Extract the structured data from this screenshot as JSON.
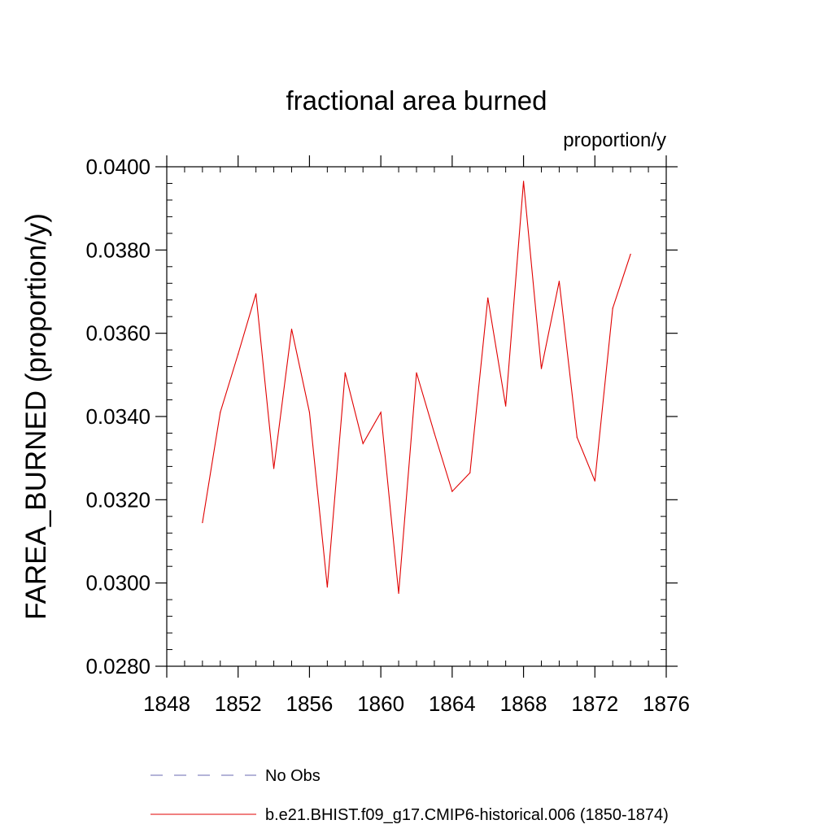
{
  "chart_data": {
    "type": "line",
    "title": "fractional area burned",
    "units_label": "proportion/y",
    "xlabel": "",
    "ylabel": "FAREA_BURNED  (proportion/y)",
    "xlim": [
      1848,
      1876
    ],
    "ylim": [
      0.028,
      0.04
    ],
    "x_ticks": [
      1848,
      1852,
      1856,
      1860,
      1864,
      1868,
      1872,
      1876
    ],
    "x_tick_labels": [
      "1848",
      "1852",
      "1856",
      "1860",
      "1864",
      "1868",
      "1872",
      "1876"
    ],
    "y_ticks": [
      0.028,
      0.03,
      0.032,
      0.034,
      0.036,
      0.038,
      0.04
    ],
    "y_tick_labels": [
      "0.0280",
      "0.0300",
      "0.0320",
      "0.0340",
      "0.0360",
      "0.0380",
      "0.0400"
    ],
    "grid": false,
    "legend_position": "bottom",
    "series": [
      {
        "name": "No Obs",
        "color": "#6a6ab0",
        "dash": "dashed",
        "x": [],
        "y": []
      },
      {
        "name": "b.e21.BHIST.f09_g17.CMIP6-historical.006 (1850-1874)",
        "color": "#e00000",
        "dash": "solid",
        "x": [
          1850,
          1851,
          1852,
          1853,
          1854,
          1855,
          1856,
          1857,
          1858,
          1859,
          1860,
          1861,
          1862,
          1863,
          1864,
          1865,
          1866,
          1867,
          1868,
          1869,
          1870,
          1871,
          1872,
          1873,
          1874
        ],
        "y": [
          0.03145,
          0.0341,
          0.0355,
          0.03695,
          0.03275,
          0.0361,
          0.0341,
          0.0299,
          0.03505,
          0.03335,
          0.0341,
          0.02975,
          0.03505,
          0.0336,
          0.0322,
          0.03265,
          0.03685,
          0.03425,
          0.03965,
          0.03515,
          0.03725,
          0.0335,
          0.03245,
          0.0366,
          0.0379
        ]
      }
    ]
  }
}
